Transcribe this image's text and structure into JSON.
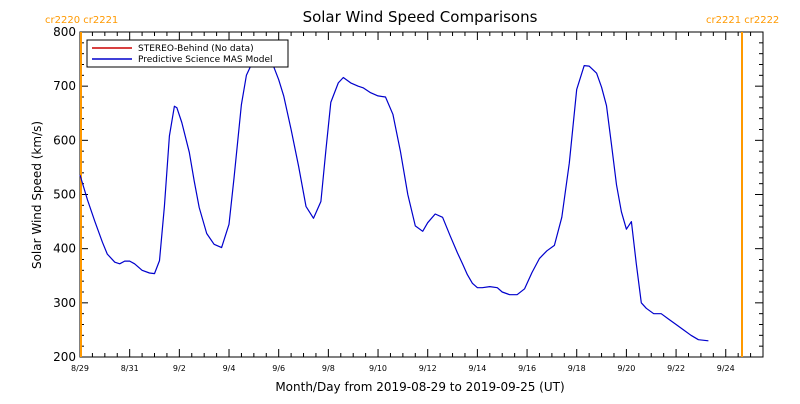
{
  "chart_data": {
    "type": "line",
    "title": "Solar Wind Speed Comparisons",
    "xlabel": "Month/Day from 2019-08-29 to 2019-09-25 (UT)",
    "ylabel": "Solar Wind Speed (km/s)",
    "xlim": [
      0,
      27.5
    ],
    "ylim": [
      200,
      800
    ],
    "grid": false,
    "legend_position": "top-left",
    "x_tick_labels": [
      "8/29",
      "8/31",
      "9/2",
      "9/4",
      "9/6",
      "9/8",
      "9/10",
      "9/12",
      "9/14",
      "9/16",
      "9/18",
      "9/20",
      "9/22",
      "9/24"
    ],
    "y_ticks": [
      200,
      300,
      400,
      500,
      600,
      700,
      800
    ],
    "carrington_labels": {
      "left": "cr2220 cr2221",
      "right": "cr2221 cr2222",
      "color": "#ff9900"
    },
    "series": [
      {
        "name": "STEREO-Behind (No data)",
        "color": "#cc0000",
        "values": []
      },
      {
        "name": "Predictive Science MAS Model",
        "color": "#0000cc",
        "x": [
          0.0,
          0.3,
          0.6,
          0.9,
          1.1,
          1.4,
          1.6,
          1.8,
          2.0,
          2.2,
          2.5,
          2.8,
          3.0,
          3.2,
          3.4,
          3.6,
          3.8,
          3.9,
          4.1,
          4.4,
          4.6,
          4.8,
          5.1,
          5.4,
          5.7,
          6.0,
          6.2,
          6.5,
          6.7,
          7.0,
          7.2,
          7.4,
          7.6,
          7.8,
          8.0,
          8.2,
          8.5,
          8.8,
          9.1,
          9.4,
          9.7,
          9.9,
          10.1,
          10.4,
          10.6,
          10.9,
          11.2,
          11.4,
          11.7,
          12.0,
          12.3,
          12.6,
          12.9,
          13.2,
          13.5,
          13.8,
          14.0,
          14.3,
          14.6,
          14.9,
          15.2,
          15.4,
          15.6,
          15.8,
          16.0,
          16.2,
          16.5,
          16.8,
          17.0,
          17.3,
          17.6,
          17.9,
          18.2,
          18.5,
          18.8,
          19.1,
          19.4,
          19.7,
          20.0,
          20.3,
          20.5,
          20.8,
          21.0,
          21.2,
          21.4,
          21.6,
          21.8,
          22.0,
          22.2,
          22.4,
          22.6,
          22.8,
          23.1,
          23.4,
          23.7,
          24.0,
          24.3,
          24.6,
          24.9,
          25.3
        ],
        "values": [
          536,
          490,
          450,
          412,
          390,
          375,
          372,
          377,
          377,
          372,
          360,
          355,
          354,
          378,
          478,
          608,
          663,
          660,
          633,
          578,
          525,
          476,
          428,
          408,
          402,
          445,
          530,
          666,
          720,
          750,
          752,
          750,
          748,
          736,
          712,
          682,
          620,
          552,
          478,
          456,
          487,
          582,
          670,
          706,
          716,
          706,
          700,
          697,
          688,
          682,
          680,
          648,
          580,
          500,
          442,
          432,
          448,
          464,
          458,
          424,
          392,
          372,
          352,
          336,
          328,
          328,
          330,
          328,
          320,
          315,
          315,
          326,
          356,
          382,
          396,
          406,
          458,
          558,
          694,
          738,
          737,
          724,
          698,
          664,
          592,
          518,
          468,
          436,
          450,
          372,
          300,
          290,
          280,
          280,
          270,
          260,
          250,
          240,
          232,
          230
        ]
      }
    ]
  }
}
